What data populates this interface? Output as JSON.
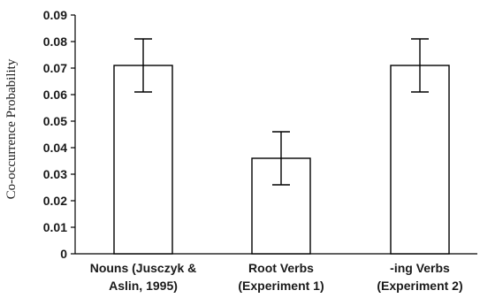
{
  "chart_data": {
    "type": "bar",
    "categories": [
      [
        "Nouns (Jusczyk &",
        "Aslin, 1995)"
      ],
      [
        "Root Verbs",
        "(Experiment 1)"
      ],
      [
        "-ing Verbs",
        "(Experiment 2)"
      ]
    ],
    "values": [
      0.071,
      0.036,
      0.071
    ],
    "error_low": [
      0.061,
      0.026,
      0.061
    ],
    "error_high": [
      0.081,
      0.046,
      0.081
    ],
    "ylabel": "Co-occurrence Probability",
    "ylim": [
      0,
      0.09
    ],
    "yticks": [
      "0",
      "0.01",
      "0.02",
      "0.03",
      "0.04",
      "0.05",
      "0.06",
      "0.07",
      "0.08",
      "0.09"
    ],
    "bar_fill": "#ffffff",
    "bar_stroke": "#000000",
    "grid": false,
    "legend": "none"
  }
}
